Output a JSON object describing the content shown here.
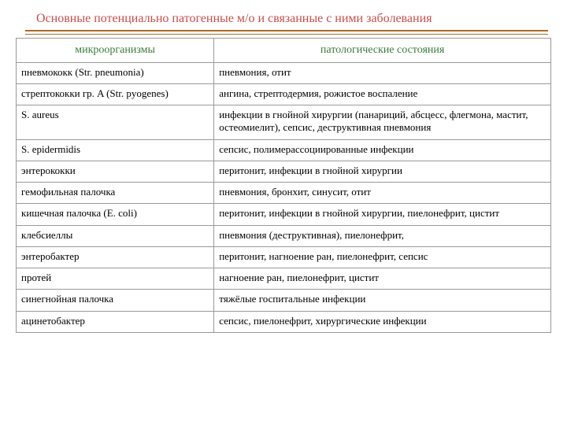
{
  "slide": {
    "title": "Основные потенциально патогенные м/о и связанные с ними заболевания",
    "title_color": "#c0504d",
    "line_color": "#aa6b2a",
    "background_color": "#ffffff"
  },
  "table": {
    "border_color": "#999999",
    "header_text_color": "#3a7a3a",
    "cell_text_color": "#000000",
    "font_family": "Times New Roman",
    "header_fontsize": 14,
    "cell_fontsize": 13,
    "col_widths_pct": [
      37,
      63
    ],
    "columns": [
      "микроорганизмы",
      "патологические состояния"
    ],
    "rows": [
      {
        "org": "пневмококк (Str. pneumonia)",
        "cond": "пневмония, отит"
      },
      {
        "org": "стрептококки гр. A (Str. pyogenes)",
        "cond": "ангина, стрептодермия, рожистое воспаление",
        "extra_pad": "md"
      },
      {
        "org": "S. aureus",
        "cond": "инфекции в гнойной хирургии (панариций, абсцесс, флегмона, мастит, остеомиелит), сепсис, деструктивная пневмония"
      },
      {
        "org": "S. epidermidis",
        "cond": "сепсис, полимерассоциированные инфекции"
      },
      {
        "org": "энтерококки",
        "cond": "перитонит, инфекции в гнойной хирургии"
      },
      {
        "org": "гемофильная палочка",
        "cond": "пневмония, бронхит, синусит, отит"
      },
      {
        "org": "кишечная палочка (E. coli)",
        "cond": "перитонит, инфекции в гнойной хирургии, пиелонефрит, цистит"
      },
      {
        "org": "клебсиеллы",
        "cond": "пневмония (деструктивная), пиелонефрит,"
      },
      {
        "org": "энтеробактер",
        "cond": "перитонит, нагноение ран, пиелонефрит, сепсис",
        "extra_pad": "lg"
      },
      {
        "org": "протей",
        "cond": "нагноение ран, пиелонефрит, цистит"
      },
      {
        "org": "синегнойная палочка",
        "cond": "тяжёлые госпитальные инфекции"
      },
      {
        "org": "ацинетобактер",
        "cond": "сепсис, пиелонефрит, хирургические инфекции",
        "extra_pad": "md"
      }
    ]
  }
}
